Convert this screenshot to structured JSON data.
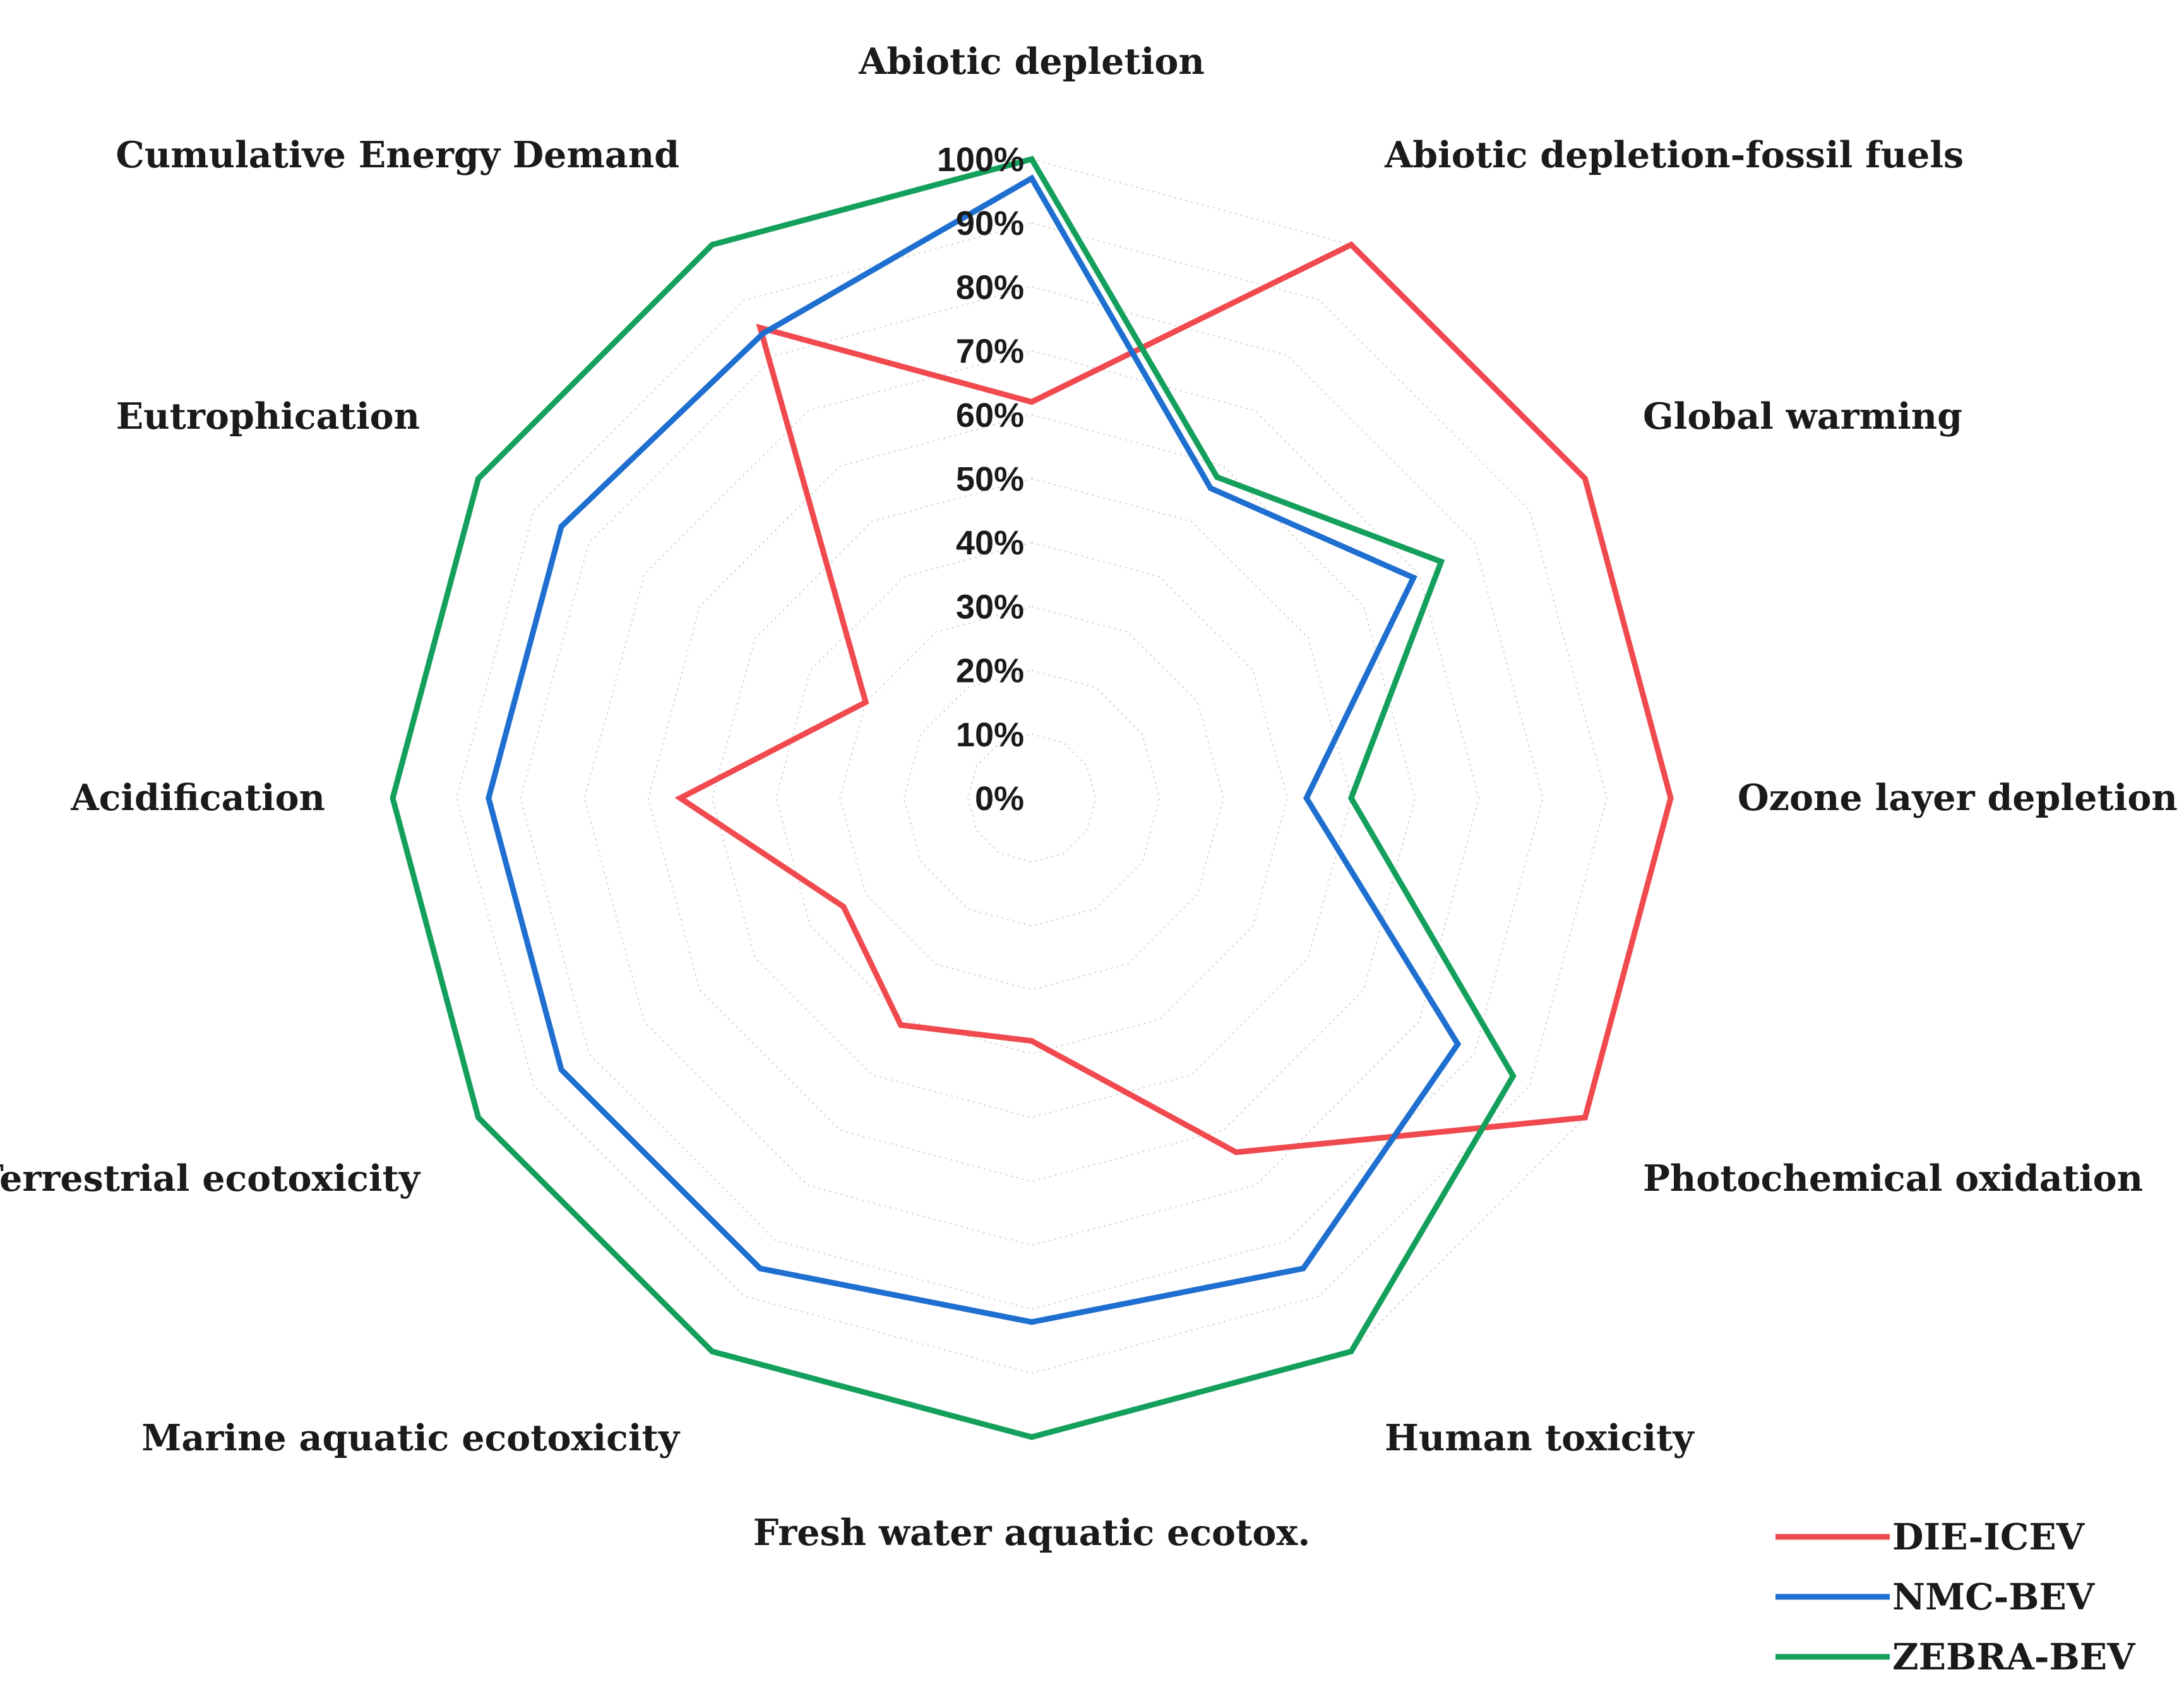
{
  "chart_data": {
    "type": "radar",
    "title": "",
    "axes": [
      "Abiotic depletion",
      "Abiotic depletion-fossil fuels",
      "Global warming",
      "Ozone layer depletion",
      "Photochemical oxidation",
      "Human toxicity",
      "Fresh water aquatic ecotox.",
      "Marine aquatic ecotoxicity",
      "Terrestrial ecotoxicity",
      "Acidification",
      "Eutrophication",
      "Cumulative Energy Demand"
    ],
    "r_ticks": [
      "0%",
      "10%",
      "20%",
      "30%",
      "40%",
      "50%",
      "60%",
      "70%",
      "80%",
      "90%",
      "100%"
    ],
    "r_range": [
      0,
      100
    ],
    "series": [
      {
        "name": "DIE-ICEV",
        "color": "#f04a4f",
        "values": [
          62,
          100,
          100,
          100,
          100,
          64,
          38,
          41,
          34,
          55,
          30,
          85
        ]
      },
      {
        "name": "NMC-BEV",
        "color": "#1e6fd0",
        "values": [
          97,
          56,
          69,
          43,
          77,
          85,
          82,
          85,
          85,
          85,
          85,
          84
        ]
      },
      {
        "name": "ZEBRA-BEV",
        "color": "#14a05c",
        "values": [
          100,
          58,
          74,
          50,
          87,
          100,
          100,
          100,
          100,
          100,
          100,
          100
        ]
      }
    ],
    "legend_position": "bottom-right"
  }
}
